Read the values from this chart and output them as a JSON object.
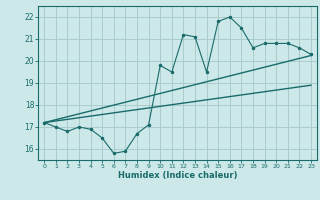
{
  "xlabel": "Humidex (Indice chaleur)",
  "bg_color": "#cce8e8",
  "grid_color": "#aacccc",
  "line_color": "#1a6b6b",
  "xlim": [
    -0.5,
    23.5
  ],
  "ylim": [
    15.5,
    22.5
  ],
  "yticks": [
    16,
    17,
    18,
    19,
    20,
    21,
    22
  ],
  "xticks": [
    0,
    1,
    2,
    3,
    4,
    5,
    6,
    7,
    8,
    9,
    10,
    11,
    12,
    13,
    14,
    15,
    16,
    17,
    18,
    19,
    20,
    21,
    22,
    23
  ],
  "main_x": [
    0,
    1,
    2,
    3,
    4,
    5,
    6,
    7,
    8,
    9,
    10,
    11,
    12,
    13,
    14,
    15,
    16,
    17,
    18,
    19,
    20,
    21,
    22,
    23
  ],
  "main_y": [
    17.2,
    17.0,
    16.8,
    17.0,
    16.9,
    16.5,
    15.8,
    15.9,
    16.7,
    17.1,
    19.8,
    19.5,
    21.2,
    21.1,
    19.5,
    21.8,
    22.0,
    21.5,
    20.6,
    20.8,
    20.8,
    20.8,
    20.6,
    20.3
  ],
  "line1_x": [
    0,
    23
  ],
  "line1_y": [
    17.2,
    20.25
  ],
  "line2_x": [
    0,
    23
  ],
  "line2_y": [
    17.2,
    18.9
  ]
}
